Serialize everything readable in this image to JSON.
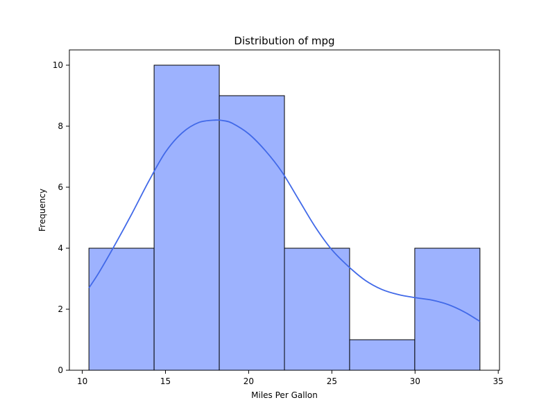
{
  "chart_data": {
    "type": "bar",
    "title": "Distribution of mpg",
    "xlabel": "Miles Per Gallon",
    "ylabel": "Frequency",
    "bins": [
      {
        "start": 10.4,
        "end": 14.3167,
        "count": 4
      },
      {
        "start": 14.3167,
        "end": 18.2333,
        "count": 10
      },
      {
        "start": 18.2333,
        "end": 22.15,
        "count": 9
      },
      {
        "start": 22.15,
        "end": 26.0667,
        "count": 4
      },
      {
        "start": 26.0667,
        "end": 29.9833,
        "count": 1
      },
      {
        "start": 29.9833,
        "end": 33.9,
        "count": 4
      }
    ],
    "kde": {
      "x": [
        10.4,
        11.0,
        12.0,
        13.0,
        14.0,
        15.0,
        16.0,
        17.0,
        18.0,
        18.5,
        19.0,
        20.0,
        21.0,
        22.0,
        23.0,
        24.0,
        25.0,
        26.0,
        27.0,
        28.0,
        29.0,
        30.0,
        31.0,
        32.0,
        33.0,
        33.9
      ],
      "y": [
        2.7,
        3.2,
        4.15,
        5.15,
        6.2,
        7.15,
        7.78,
        8.12,
        8.2,
        8.18,
        8.1,
        7.75,
        7.2,
        6.5,
        5.6,
        4.7,
        3.95,
        3.4,
        2.95,
        2.65,
        2.48,
        2.38,
        2.3,
        2.15,
        1.9,
        1.6
      ]
    },
    "xlim": [
      9.225,
      35.075
    ],
    "ylim": [
      0,
      10.5
    ],
    "xticks": [
      10,
      15,
      20,
      25,
      30,
      35
    ],
    "yticks": [
      0,
      2,
      4,
      6,
      8,
      10
    ],
    "grid": false,
    "colors": {
      "bar_fill": "#9db2fe",
      "bar_edge": "#000000",
      "kde_line": "#4169e8",
      "axis": "#000000"
    }
  }
}
